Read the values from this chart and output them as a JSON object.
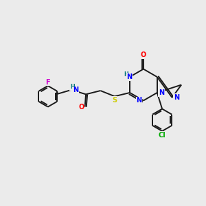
{
  "bg_color": "#ebebeb",
  "atom_colors": {
    "C": "#000000",
    "N": "#0000ff",
    "O": "#ff0000",
    "S": "#cccc00",
    "F": "#cc00cc",
    "Cl": "#00aa00",
    "H": "#007777"
  },
  "bond_color": "#1a1a1a",
  "figsize": [
    3.0,
    3.0
  ],
  "dpi": 100
}
